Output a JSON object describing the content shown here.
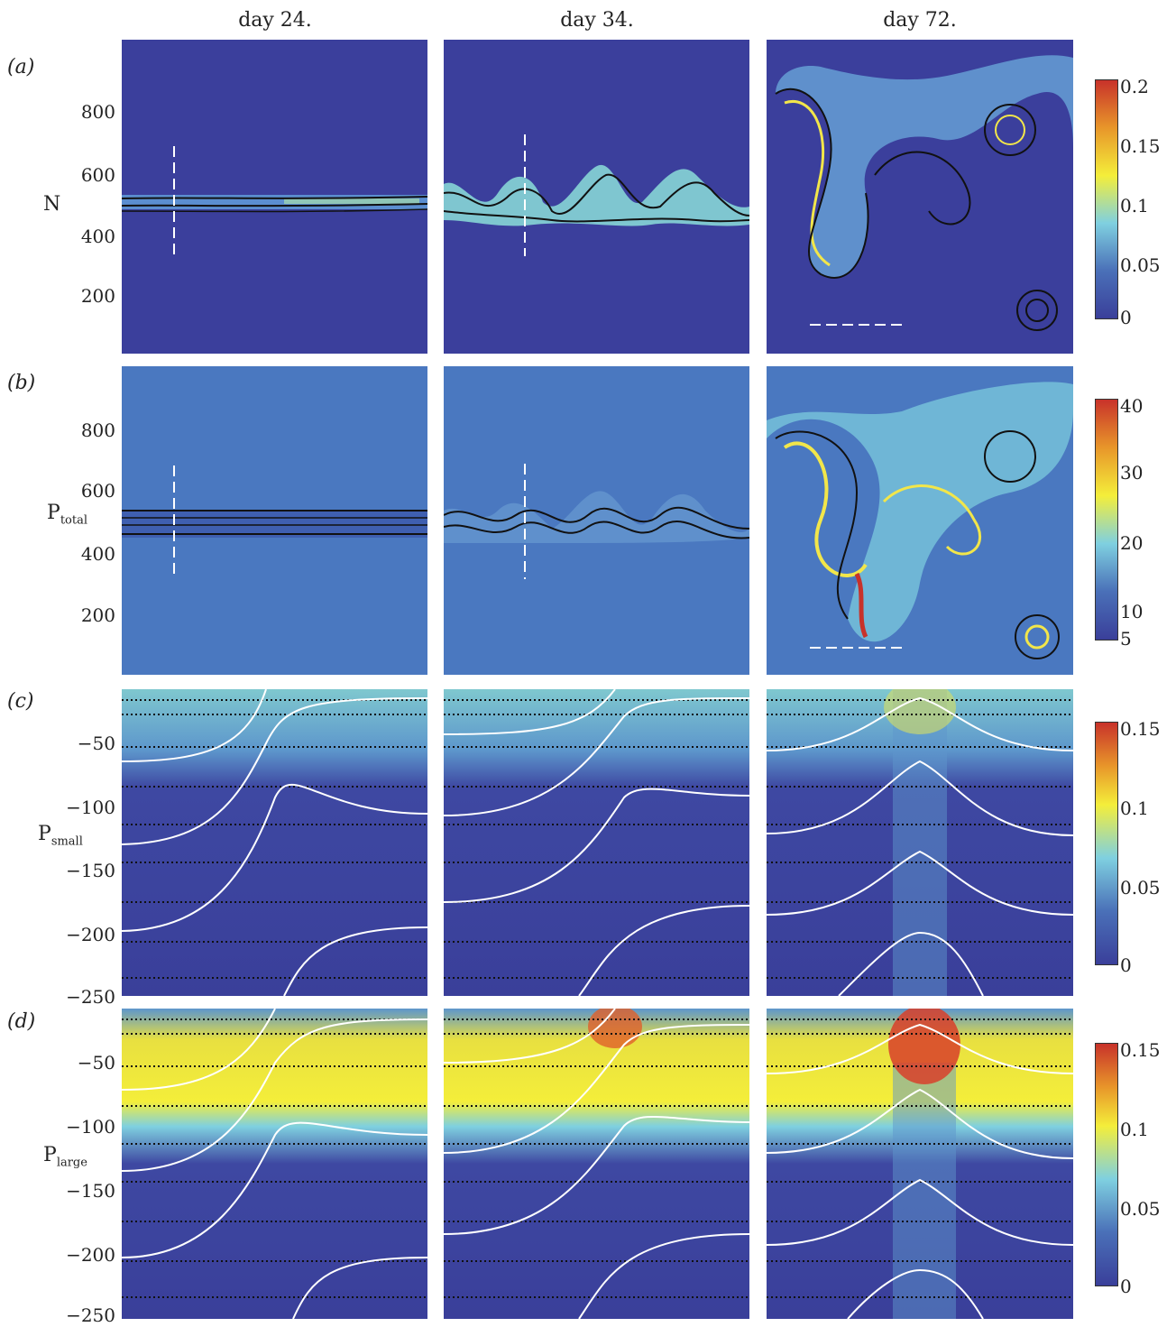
{
  "columns": [
    "day 24.",
    "day 34.",
    "day 72."
  ],
  "rows": [
    {
      "label": "(a)",
      "ylabel": "N",
      "ylabel_sub": "",
      "yticks": [
        "800",
        "600",
        "400",
        "200"
      ],
      "colorbar": [
        "0.2",
        "0.15",
        "0.1",
        "0.05",
        "0"
      ]
    },
    {
      "label": "(b)",
      "ylabel": "P",
      "ylabel_sub": "total",
      "yticks": [
        "800",
        "600",
        "400",
        "200"
      ],
      "colorbar": [
        "40",
        "30",
        "20",
        "10",
        "5"
      ]
    },
    {
      "label": "(c)",
      "ylabel": "P",
      "ylabel_sub": "small",
      "yticks": [
        "−50",
        "−100",
        "−150",
        "−200",
        "−250"
      ],
      "colorbar": [
        "0.15",
        "0.1",
        "0.05",
        "0"
      ]
    },
    {
      "label": "(d)",
      "ylabel": "P",
      "ylabel_sub": "large",
      "yticks": [
        "−50",
        "−100",
        "−150",
        "−200",
        "−250"
      ],
      "colorbar": [
        "0.15",
        "0.1",
        "0.05",
        "0"
      ]
    }
  ],
  "colors": {
    "background_low": "#3a3f9a",
    "background_mid": "#4a70b8",
    "cyan": "#7fd0e0",
    "yellow": "#f4ee3a",
    "orange": "#e8962a",
    "red": "#c8322a"
  }
}
